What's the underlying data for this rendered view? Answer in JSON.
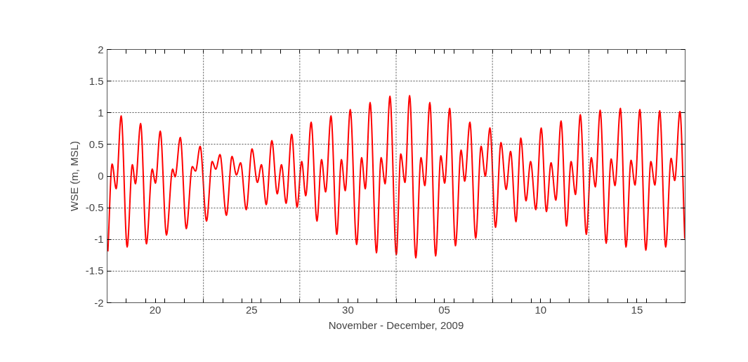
{
  "chart_data": {
    "type": "line",
    "xlabel": "November - December, 2009",
    "ylabel": "WSE (m, MSL)",
    "xlim": [
      "2009-11-18",
      "2009-12-18"
    ],
    "ylim": [
      -2,
      2
    ],
    "xticks": [
      {
        "value": "2009-11-19",
        "label": null
      },
      {
        "value": "2009-11-20",
        "label": null
      },
      {
        "value": "2009-11-20T12:00",
        "label": "20"
      },
      {
        "value": "2009-11-21",
        "label": null
      },
      {
        "value": "2009-11-22",
        "label": null
      },
      {
        "value": "2009-11-23",
        "label": null
      },
      {
        "value": "2009-11-24",
        "label": null
      },
      {
        "value": "2009-11-25",
        "label": null
      },
      {
        "value": "2009-11-25T12:00",
        "label": "25"
      },
      {
        "value": "2009-11-26",
        "label": null
      },
      {
        "value": "2009-11-27",
        "label": null
      },
      {
        "value": "2009-11-28",
        "label": null
      },
      {
        "value": "2009-11-29",
        "label": null
      },
      {
        "value": "2009-11-30",
        "label": null
      },
      {
        "value": "2009-11-30T12:00",
        "label": "30"
      },
      {
        "value": "2009-12-01",
        "label": null
      },
      {
        "value": "2009-12-02",
        "label": null
      },
      {
        "value": "2009-12-03",
        "label": null
      },
      {
        "value": "2009-12-04",
        "label": null
      },
      {
        "value": "2009-12-05",
        "label": null
      },
      {
        "value": "2009-12-05T12:00",
        "label": "05"
      },
      {
        "value": "2009-12-06",
        "label": null
      },
      {
        "value": "2009-12-07",
        "label": null
      },
      {
        "value": "2009-12-08",
        "label": null
      },
      {
        "value": "2009-12-09",
        "label": null
      },
      {
        "value": "2009-12-10",
        "label": null
      },
      {
        "value": "2009-12-10T12:00",
        "label": "10"
      },
      {
        "value": "2009-12-11",
        "label": null
      },
      {
        "value": "2009-12-12",
        "label": null
      },
      {
        "value": "2009-12-13",
        "label": null
      },
      {
        "value": "2009-12-14",
        "label": null
      },
      {
        "value": "2009-12-15",
        "label": null
      },
      {
        "value": "2009-12-15T12:00",
        "label": "15"
      },
      {
        "value": "2009-12-16",
        "label": null
      },
      {
        "value": "2009-12-17",
        "label": null
      }
    ],
    "yticks": [
      -2,
      -1.5,
      -1,
      -0.5,
      0,
      0.5,
      1,
      1.5,
      2
    ],
    "grid": "y",
    "marker": "none",
    "line_style": "solid",
    "ref_lines": [
      {
        "axis": "x",
        "value": "2009-11-23",
        "label": null,
        "color": "#555555",
        "line_style": "dotted"
      },
      {
        "axis": "x",
        "value": "2009-11-28",
        "label": null,
        "color": "#555555",
        "line_style": "dotted"
      },
      {
        "axis": "x",
        "value": "2009-12-03",
        "label": null,
        "color": "#555555",
        "line_style": "dotted"
      },
      {
        "axis": "x",
        "value": "2009-12-08",
        "label": null,
        "color": "#555555",
        "line_style": "dotted"
      },
      {
        "axis": "x",
        "value": "2009-12-13",
        "label": null,
        "color": "#555555",
        "line_style": "dotted"
      }
    ],
    "series": [
      {
        "color": "#ff0000",
        "x": [
          "2009-11-18T00:58",
          "2009-11-18T06:14",
          "2009-11-18T11:17",
          "2009-11-18T17:31",
          "2009-11-19T00:58",
          "2009-11-19T07:26",
          "2009-11-19T11:17",
          "2009-11-19T17:46",
          "2009-11-20T00:58",
          "2009-11-20T08:10",
          "2009-11-20T12:14",
          "2009-11-20T18:14",
          "2009-11-21T01:55",
          "2009-11-21T09:36",
          "2009-11-21T12:43",
          "2009-11-21T19:12",
          "2009-11-22T02:38",
          "2009-11-22T10:05",
          "2009-11-22T14:10",
          "2009-11-22T19:55",
          "2009-11-23T03:50",
          "2009-11-23T10:48",
          "2009-11-23T15:22",
          "2009-11-23T20:38",
          "2009-11-24T04:34",
          "2009-11-24T11:31",
          "2009-11-24T17:02",
          "2009-11-24T22:19",
          "2009-11-25T05:17",
          "2009-11-25T12:29",
          "2009-11-25T19:12",
          "2009-11-26T00:14",
          "2009-11-26T06:14",
          "2009-11-26T13:12",
          "2009-11-26T19:55",
          "2009-11-27T01:12",
          "2009-11-27T06:58",
          "2009-11-27T13:55",
          "2009-11-27T20:38",
          "2009-11-28T02:24",
          "2009-11-28T07:26",
          "2009-11-28T14:10",
          "2009-11-28T21:22",
          "2009-11-29T03:07",
          "2009-11-29T08:10",
          "2009-11-29T14:53",
          "2009-11-29T22:05",
          "2009-11-30T03:50",
          "2009-11-30T08:38",
          "2009-11-30T14:53",
          "2009-11-30T22:48",
          "2009-12-01T05:02",
          "2009-12-01T09:36",
          "2009-12-01T15:36",
          "2009-12-01T23:31",
          "2009-12-02T05:17",
          "2009-12-02T10:19",
          "2009-12-02T16:19",
          "2009-12-03T00:14",
          "2009-12-03T05:46",
          "2009-12-03T11:02",
          "2009-12-03T16:48",
          "2009-12-04T00:29",
          "2009-12-04T06:58",
          "2009-12-04T11:46",
          "2009-12-04T18:00",
          "2009-12-05T01:12",
          "2009-12-05T07:41",
          "2009-12-05T12:29",
          "2009-12-05T18:43",
          "2009-12-06T01:55",
          "2009-12-06T08:53",
          "2009-12-06T13:26",
          "2009-12-06T19:55",
          "2009-12-07T03:07",
          "2009-12-07T09:50",
          "2009-12-07T15:07",
          "2009-12-07T20:53",
          "2009-12-08T03:50",
          "2009-12-08T10:34",
          "2009-12-08T17:02",
          "2009-12-08T22:34",
          "2009-12-09T05:17",
          "2009-12-09T11:17",
          "2009-12-09T17:46",
          "2009-12-09T23:31",
          "2009-12-10T06:00",
          "2009-12-10T12:43",
          "2009-12-10T19:12",
          "2009-12-11T00:58",
          "2009-12-11T06:58",
          "2009-12-11T13:26",
          "2009-12-11T20:10",
          "2009-12-12T01:55",
          "2009-12-12T07:26",
          "2009-12-12T13:26",
          "2009-12-12T20:53",
          "2009-12-13T03:07",
          "2009-12-13T08:10",
          "2009-12-13T14:10",
          "2009-12-13T21:36",
          "2009-12-14T03:50",
          "2009-12-14T08:38",
          "2009-12-14T15:22",
          "2009-12-14T22:19",
          "2009-12-15T04:34",
          "2009-12-15T09:36",
          "2009-12-15T15:36",
          "2009-12-15T23:02",
          "2009-12-16T05:17",
          "2009-12-16T10:19",
          "2009-12-16T16:19",
          "2009-12-16T23:46",
          "2009-12-17T06:29",
          "2009-12-17T11:02",
          "2009-12-17T17:31",
          "2009-12-17T23:31"
        ],
        "values": [
          -1.19,
          0.19,
          -0.2,
          0.95,
          -1.12,
          0.18,
          -0.12,
          0.83,
          -1.07,
          0.11,
          -0.11,
          0.71,
          -0.93,
          0.11,
          -0.01,
          0.61,
          -0.83,
          0.15,
          0.08,
          0.47,
          -0.71,
          0.23,
          0.11,
          0.34,
          -0.62,
          0.31,
          0.02,
          0.21,
          -0.53,
          0.43,
          -0.1,
          0.18,
          -0.45,
          0.56,
          -0.28,
          0.18,
          -0.43,
          0.66,
          -0.49,
          0.23,
          -0.31,
          0.85,
          -0.71,
          0.26,
          -0.25,
          0.95,
          -0.92,
          0.26,
          -0.23,
          1.05,
          -1.08,
          0.29,
          -0.2,
          1.16,
          -1.21,
          0.29,
          -0.12,
          1.26,
          -1.24,
          0.35,
          -0.1,
          1.27,
          -1.29,
          0.29,
          -0.15,
          1.16,
          -1.26,
          0.32,
          -0.11,
          1.07,
          -1.1,
          0.41,
          -0.08,
          0.85,
          -0.98,
          0.47,
          0.0,
          0.76,
          -0.81,
          0.53,
          -0.21,
          0.39,
          -0.72,
          0.6,
          -0.39,
          0.23,
          -0.53,
          0.76,
          -0.56,
          0.21,
          -0.38,
          0.87,
          -0.79,
          0.23,
          -0.29,
          0.97,
          -0.92,
          0.29,
          -0.17,
          1.04,
          -1.06,
          0.27,
          -0.15,
          1.07,
          -1.12,
          0.25,
          -0.14,
          1.05,
          -1.17,
          0.23,
          -0.14,
          1.03,
          -1.12,
          0.28,
          -0.07,
          1.02,
          -0.99
        ]
      }
    ]
  }
}
